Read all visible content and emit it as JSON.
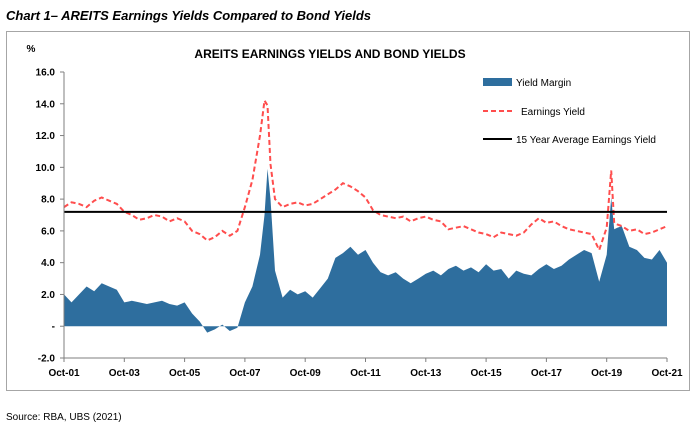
{
  "page": {
    "heading": "Chart 1– AREITS Earnings Yields Compared to Bond Yields",
    "source": "Source: RBA, UBS (2021)"
  },
  "chart_data": {
    "type": "area",
    "title": "AREITS EARNINGS YIELDS AND BOND YIELDS",
    "ylabel": "%",
    "xlabel": "",
    "ylim": [
      -2.0,
      16.0
    ],
    "xlim": [
      2001.75,
      2021.75
    ],
    "y_ticks": [
      {
        "value": 16,
        "label": "16.0"
      },
      {
        "value": 14,
        "label": "14.0"
      },
      {
        "value": 12,
        "label": "12.0"
      },
      {
        "value": 10,
        "label": "10.0"
      },
      {
        "value": 8,
        "label": "8.0"
      },
      {
        "value": 6,
        "label": "6.0"
      },
      {
        "value": 4,
        "label": "4.0"
      },
      {
        "value": 2,
        "label": "2.0"
      },
      {
        "value": 0,
        "label": "-"
      },
      {
        "value": -2,
        "label": "-2.0"
      }
    ],
    "x_ticks": [
      {
        "value": 2001.75,
        "label": "Oct-01"
      },
      {
        "value": 2003.75,
        "label": "Oct-03"
      },
      {
        "value": 2005.75,
        "label": "Oct-05"
      },
      {
        "value": 2007.75,
        "label": "Oct-07"
      },
      {
        "value": 2009.75,
        "label": "Oct-09"
      },
      {
        "value": 2011.75,
        "label": "Oct-11"
      },
      {
        "value": 2013.75,
        "label": "Oct-13"
      },
      {
        "value": 2015.75,
        "label": "Oct-15"
      },
      {
        "value": 2017.75,
        "label": "Oct-17"
      },
      {
        "value": 2019.75,
        "label": "Oct-19"
      },
      {
        "value": 2021.75,
        "label": "Oct-21"
      }
    ],
    "legend_position": "top-right",
    "grid": false,
    "series": [
      {
        "name": "Yield Margin",
        "style": "area",
        "color": "#2e6e9e",
        "x": [
          2001.75,
          2002.0,
          2002.25,
          2002.5,
          2002.75,
          2003.0,
          2003.25,
          2003.5,
          2003.75,
          2004.0,
          2004.25,
          2004.5,
          2004.75,
          2005.0,
          2005.25,
          2005.5,
          2005.75,
          2006.0,
          2006.25,
          2006.5,
          2006.75,
          2007.0,
          2007.25,
          2007.5,
          2007.75,
          2008.0,
          2008.25,
          2008.4,
          2008.5,
          2008.6,
          2008.75,
          2009.0,
          2009.25,
          2009.5,
          2009.75,
          2010.0,
          2010.25,
          2010.5,
          2010.75,
          2011.0,
          2011.25,
          2011.5,
          2011.75,
          2012.0,
          2012.25,
          2012.5,
          2012.75,
          2013.0,
          2013.25,
          2013.5,
          2013.75,
          2014.0,
          2014.25,
          2014.5,
          2014.75,
          2015.0,
          2015.25,
          2015.5,
          2015.75,
          2016.0,
          2016.25,
          2016.5,
          2016.75,
          2017.0,
          2017.25,
          2017.5,
          2017.75,
          2018.0,
          2018.25,
          2018.5,
          2018.75,
          2019.0,
          2019.25,
          2019.5,
          2019.75,
          2019.9,
          2020.0,
          2020.1,
          2020.25,
          2020.5,
          2020.75,
          2021.0,
          2021.25,
          2021.5,
          2021.75
        ],
        "values": [
          2.0,
          1.5,
          2.0,
          2.5,
          2.2,
          2.7,
          2.5,
          2.3,
          1.5,
          1.6,
          1.5,
          1.4,
          1.5,
          1.6,
          1.4,
          1.3,
          1.5,
          0.8,
          0.3,
          -0.4,
          -0.2,
          0.1,
          -0.3,
          -0.1,
          1.5,
          2.5,
          4.5,
          7.0,
          9.9,
          8.0,
          3.5,
          1.8,
          2.3,
          2.0,
          2.2,
          1.8,
          2.4,
          3.0,
          4.3,
          4.6,
          5.0,
          4.5,
          4.8,
          4.0,
          3.4,
          3.2,
          3.4,
          3.0,
          2.7,
          3.0,
          3.3,
          3.5,
          3.2,
          3.6,
          3.8,
          3.5,
          3.7,
          3.4,
          3.9,
          3.5,
          3.6,
          3.0,
          3.5,
          3.3,
          3.2,
          3.6,
          3.9,
          3.6,
          3.8,
          4.2,
          4.5,
          4.8,
          4.6,
          2.8,
          4.5,
          8.1,
          6.1,
          6.2,
          6.3,
          5.0,
          4.8,
          4.3,
          4.2,
          4.8,
          4.0
        ]
      },
      {
        "name": "Earnings Yield",
        "style": "dashed-line",
        "color": "#ff4d4d",
        "x": [
          2001.75,
          2002.0,
          2002.25,
          2002.5,
          2002.75,
          2003.0,
          2003.25,
          2003.5,
          2003.75,
          2004.0,
          2004.25,
          2004.5,
          2004.75,
          2005.0,
          2005.25,
          2005.5,
          2005.75,
          2006.0,
          2006.25,
          2006.5,
          2006.75,
          2007.0,
          2007.25,
          2007.5,
          2007.75,
          2008.0,
          2008.25,
          2008.4,
          2008.5,
          2008.6,
          2008.75,
          2009.0,
          2009.25,
          2009.5,
          2009.75,
          2010.0,
          2010.25,
          2010.5,
          2010.75,
          2011.0,
          2011.25,
          2011.5,
          2011.75,
          2012.0,
          2012.25,
          2012.5,
          2012.75,
          2013.0,
          2013.25,
          2013.5,
          2013.75,
          2014.0,
          2014.25,
          2014.5,
          2014.75,
          2015.0,
          2015.25,
          2015.5,
          2015.75,
          2016.0,
          2016.25,
          2016.5,
          2016.75,
          2017.0,
          2017.25,
          2017.5,
          2017.75,
          2018.0,
          2018.25,
          2018.5,
          2018.75,
          2019.0,
          2019.25,
          2019.5,
          2019.75,
          2019.9,
          2020.0,
          2020.1,
          2020.25,
          2020.5,
          2020.75,
          2021.0,
          2021.25,
          2021.5,
          2021.75
        ],
        "values": [
          7.5,
          7.8,
          7.7,
          7.5,
          7.9,
          8.1,
          7.9,
          7.7,
          7.2,
          7.0,
          6.7,
          6.8,
          7.0,
          6.9,
          6.6,
          6.8,
          6.6,
          6.0,
          5.8,
          5.4,
          5.6,
          6.0,
          5.7,
          6.0,
          7.5,
          9.2,
          12.0,
          14.2,
          13.9,
          10.2,
          8.0,
          7.5,
          7.7,
          7.8,
          7.6,
          7.7,
          8.0,
          8.3,
          8.6,
          9.0,
          8.8,
          8.5,
          8.1,
          7.3,
          7.0,
          6.9,
          6.8,
          6.9,
          6.6,
          6.8,
          6.9,
          6.7,
          6.6,
          6.1,
          6.2,
          6.3,
          6.1,
          5.9,
          5.8,
          5.6,
          5.9,
          5.8,
          5.7,
          5.9,
          6.4,
          6.8,
          6.5,
          6.6,
          6.3,
          6.1,
          6.0,
          5.9,
          5.8,
          4.8,
          6.2,
          9.8,
          6.5,
          6.4,
          6.3,
          6.0,
          6.1,
          5.8,
          5.9,
          6.1,
          6.3
        ]
      },
      {
        "name": "15 Year Average Earnings Yield",
        "style": "solid-line",
        "color": "#000000",
        "x": [
          2001.75,
          2021.75
        ],
        "values": [
          7.2,
          7.2
        ]
      }
    ]
  }
}
